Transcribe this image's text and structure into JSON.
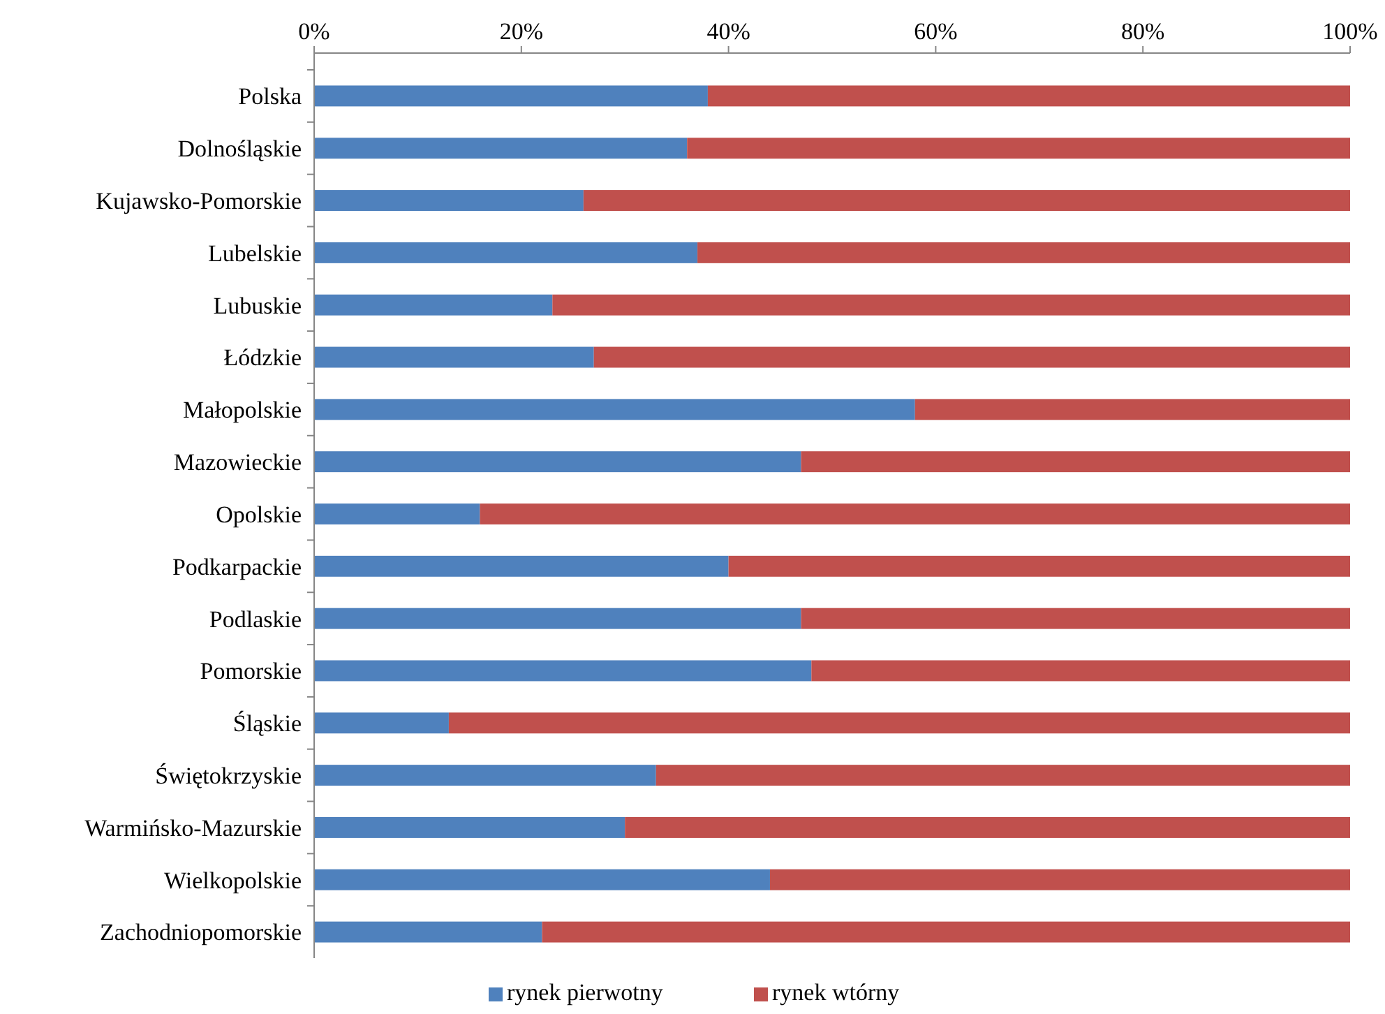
{
  "chart_data": {
    "type": "bar",
    "orientation": "horizontal",
    "stacked": true,
    "categories": [
      "Polska",
      "Dolnośląskie",
      "Kujawsko-Pomorskie",
      "Lubelskie",
      "Lubuskie",
      "Łódzkie",
      "Małopolskie",
      "Mazowieckie",
      "Opolskie",
      "Podkarpackie",
      "Podlaskie",
      "Pomorskie",
      "Śląskie",
      "Świętokrzyskie",
      "Warmińsko-Mazurskie",
      "Wielkopolskie",
      "Zachodniopomorskie"
    ],
    "series": [
      {
        "name": "rynek pierwotny",
        "color": "#4f81bd",
        "values": [
          38,
          36,
          26,
          37,
          23,
          27,
          58,
          47,
          16,
          40,
          47,
          48,
          13,
          33,
          30,
          44,
          22
        ]
      },
      {
        "name": "rynek wtórny",
        "color": "#c0504d",
        "values": [
          62,
          64,
          74,
          63,
          77,
          73,
          42,
          53,
          84,
          60,
          53,
          52,
          87,
          67,
          70,
          56,
          78
        ]
      }
    ],
    "xlim": [
      0,
      100
    ],
    "xticks": [
      {
        "value": 0,
        "label": "0%"
      },
      {
        "value": 20,
        "label": "20%"
      },
      {
        "value": 40,
        "label": "40%"
      },
      {
        "value": 60,
        "label": "60%"
      },
      {
        "value": 80,
        "label": "80%"
      },
      {
        "value": 100,
        "label": "100%"
      }
    ],
    "grid": false,
    "legend": "bottom"
  }
}
